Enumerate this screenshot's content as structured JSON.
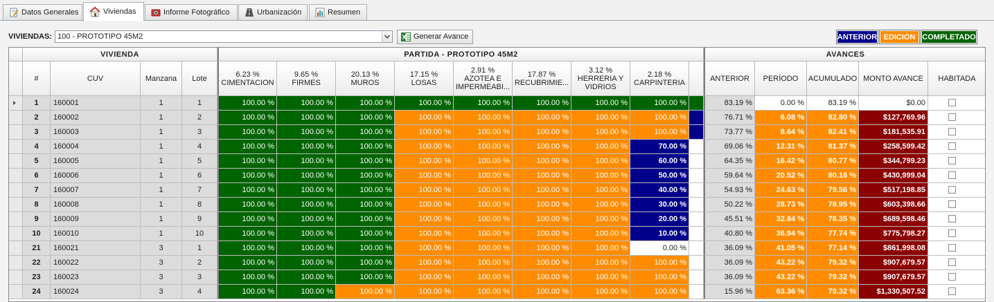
{
  "tabs": [
    {
      "label": "Datos Generales",
      "icon": "edit-document-icon"
    },
    {
      "label": "Viviendas",
      "icon": "house-icon"
    },
    {
      "label": "Informe Fotográfico",
      "icon": "camera-icon"
    },
    {
      "label": "Urbanización",
      "icon": "road-icon"
    },
    {
      "label": "Resumen",
      "icon": "bar-chart-icon"
    }
  ],
  "toolbar": {
    "viviendas_label": "VIVIENDAS:",
    "selected": "100 - PROTOTIPO 45M2",
    "generate_label": "Generar Avance"
  },
  "legend": {
    "anterior": "ANTERIOR",
    "edicion": "EDICIÓN",
    "completado": "COMPLETADO",
    "colors": {
      "anterior": "#00008b",
      "edicion": "#ff8c00",
      "completado": "#006400",
      "monto": "#8b0000"
    }
  },
  "groups": {
    "vivienda": "VIVIENDA",
    "partida": "PARTIDA - PROTOTIPO 45M2",
    "avances": "AVANCES"
  },
  "columns": {
    "num": "#",
    "cuv": "CUV",
    "manzana": "Manzana",
    "lote": "Lote",
    "partidas": [
      {
        "pct": "6.23 %",
        "name": "CIMENTACION"
      },
      {
        "pct": "9.65 %",
        "name": "FIRMES"
      },
      {
        "pct": "20.13 %",
        "name": "MUROS"
      },
      {
        "pct": "17.15 %",
        "name": "LOSAS"
      },
      {
        "pct": "2.91 %",
        "name": "AZOTEA E IMPERMEABI..."
      },
      {
        "pct": "17.87 %",
        "name": "RECUBRIMIE..."
      },
      {
        "pct": "3.12 %",
        "name": "HERRERIA Y VIDRIOS"
      },
      {
        "pct": "2.18 %",
        "name": "CARPINTERIA"
      }
    ],
    "anterior": "ANTERIOR",
    "periodo": "PERÍODO",
    "acumulado": "ACUMULADO",
    "monto": "MONTO AVANCE",
    "habitada": "HABITADA"
  },
  "rows": [
    {
      "num": "1",
      "cuv": "160001",
      "manzana": "1",
      "lote": "1",
      "p": [
        "100.00 %",
        "100.00 %",
        "100.00 %",
        "100.00 %",
        "100.00 %",
        "100.00 %",
        "100.00 %",
        "100.00 %"
      ],
      "ps": [
        "g",
        "g",
        "g",
        "g",
        "g",
        "g",
        "g",
        "g"
      ],
      "extra": "g",
      "anterior": "83.19 %",
      "periodo": "0.00 %",
      "acumulado": "83.19 %",
      "monto": "$0.00",
      "editing": false
    },
    {
      "num": "2",
      "cuv": "160002",
      "manzana": "1",
      "lote": "2",
      "p": [
        "100.00 %",
        "100.00 %",
        "100.00 %",
        "100.00 %",
        "100.00 %",
        "100.00 %",
        "100.00 %",
        "100.00 %"
      ],
      "ps": [
        "g",
        "g",
        "g",
        "o",
        "o",
        "o",
        "o",
        "o"
      ],
      "extra": "b",
      "anterior": "76.71 %",
      "periodo": "6.08 %",
      "acumulado": "82.80 %",
      "monto": "$127,769.96",
      "editing": true
    },
    {
      "num": "3",
      "cuv": "160003",
      "manzana": "1",
      "lote": "3",
      "p": [
        "100.00 %",
        "100.00 %",
        "100.00 %",
        "100.00 %",
        "100.00 %",
        "100.00 %",
        "100.00 %",
        "100.00 %"
      ],
      "ps": [
        "g",
        "g",
        "g",
        "o",
        "o",
        "o",
        "o",
        "o"
      ],
      "extra": "b",
      "anterior": "73.77 %",
      "periodo": "8.64 %",
      "acumulado": "82.41 %",
      "monto": "$181,535.91",
      "editing": true
    },
    {
      "num": "4",
      "cuv": "160004",
      "manzana": "1",
      "lote": "4",
      "p": [
        "100.00 %",
        "100.00 %",
        "100.00 %",
        "100.00 %",
        "100.00 %",
        "100.00 %",
        "100.00 %",
        "70.00 %"
      ],
      "ps": [
        "g",
        "g",
        "g",
        "o",
        "o",
        "o",
        "o",
        "b"
      ],
      "extra": "w",
      "anterior": "69.06 %",
      "periodo": "12.31 %",
      "acumulado": "81.37 %",
      "monto": "$258,599.42",
      "editing": true
    },
    {
      "num": "5",
      "cuv": "160005",
      "manzana": "1",
      "lote": "5",
      "p": [
        "100.00 %",
        "100.00 %",
        "100.00 %",
        "100.00 %",
        "100.00 %",
        "100.00 %",
        "100.00 %",
        "60.00 %"
      ],
      "ps": [
        "g",
        "g",
        "g",
        "o",
        "o",
        "o",
        "o",
        "b"
      ],
      "extra": "w",
      "anterior": "64.35 %",
      "periodo": "16.42 %",
      "acumulado": "80.77 %",
      "monto": "$344,799.23",
      "editing": true
    },
    {
      "num": "6",
      "cuv": "160006",
      "manzana": "1",
      "lote": "6",
      "p": [
        "100.00 %",
        "100.00 %",
        "100.00 %",
        "100.00 %",
        "100.00 %",
        "100.00 %",
        "100.00 %",
        "50.00 %"
      ],
      "ps": [
        "g",
        "g",
        "g",
        "o",
        "o",
        "o",
        "o",
        "b"
      ],
      "extra": "w",
      "anterior": "59.64 %",
      "periodo": "20.52 %",
      "acumulado": "80.16 %",
      "monto": "$430,999.04",
      "editing": true
    },
    {
      "num": "7",
      "cuv": "160007",
      "manzana": "1",
      "lote": "7",
      "p": [
        "100.00 %",
        "100.00 %",
        "100.00 %",
        "100.00 %",
        "100.00 %",
        "100.00 %",
        "100.00 %",
        "40.00 %"
      ],
      "ps": [
        "g",
        "g",
        "g",
        "o",
        "o",
        "o",
        "o",
        "b"
      ],
      "extra": "w",
      "anterior": "54.93 %",
      "periodo": "24.63 %",
      "acumulado": "79.56 %",
      "monto": "$517,198.85",
      "editing": true
    },
    {
      "num": "8",
      "cuv": "160008",
      "manzana": "1",
      "lote": "8",
      "p": [
        "100.00 %",
        "100.00 %",
        "100.00 %",
        "100.00 %",
        "100.00 %",
        "100.00 %",
        "100.00 %",
        "30.00 %"
      ],
      "ps": [
        "g",
        "g",
        "g",
        "o",
        "o",
        "o",
        "o",
        "b"
      ],
      "extra": "w",
      "anterior": "50.22 %",
      "periodo": "28.73 %",
      "acumulado": "78.95 %",
      "monto": "$603,398.66",
      "editing": true
    },
    {
      "num": "9",
      "cuv": "160009",
      "manzana": "1",
      "lote": "9",
      "p": [
        "100.00 %",
        "100.00 %",
        "100.00 %",
        "100.00 %",
        "100.00 %",
        "100.00 %",
        "100.00 %",
        "20.00 %"
      ],
      "ps": [
        "g",
        "g",
        "g",
        "o",
        "o",
        "o",
        "o",
        "b"
      ],
      "extra": "w",
      "anterior": "45.51 %",
      "periodo": "32.84 %",
      "acumulado": "78.35 %",
      "monto": "$689,598.46",
      "editing": true
    },
    {
      "num": "10",
      "cuv": "160010",
      "manzana": "1",
      "lote": "10",
      "p": [
        "100.00 %",
        "100.00 %",
        "100.00 %",
        "100.00 %",
        "100.00 %",
        "100.00 %",
        "100.00 %",
        "10.00 %"
      ],
      "ps": [
        "g",
        "g",
        "g",
        "o",
        "o",
        "o",
        "o",
        "b"
      ],
      "extra": "w",
      "anterior": "40.80 %",
      "periodo": "36.94 %",
      "acumulado": "77.74 %",
      "monto": "$775,798.27",
      "editing": true
    },
    {
      "num": "21",
      "cuv": "160021",
      "manzana": "3",
      "lote": "1",
      "p": [
        "100.00 %",
        "100.00 %",
        "100.00 %",
        "100.00 %",
        "100.00 %",
        "100.00 %",
        "100.00 %",
        "0.00 %"
      ],
      "ps": [
        "g",
        "g",
        "g",
        "o",
        "o",
        "o",
        "o",
        "w"
      ],
      "extra": "w",
      "anterior": "36.09 %",
      "periodo": "41.05 %",
      "acumulado": "77.14 %",
      "monto": "$861,998.08",
      "editing": true
    },
    {
      "num": "22",
      "cuv": "160022",
      "manzana": "3",
      "lote": "2",
      "p": [
        "100.00 %",
        "100.00 %",
        "100.00 %",
        "100.00 %",
        "100.00 %",
        "100.00 %",
        "100.00 %",
        "100.00 %"
      ],
      "ps": [
        "g",
        "g",
        "g",
        "o",
        "o",
        "o",
        "o",
        "o"
      ],
      "extra": "w",
      "anterior": "36.09 %",
      "periodo": "43.22 %",
      "acumulado": "79.32 %",
      "monto": "$907,679.57",
      "editing": true
    },
    {
      "num": "23",
      "cuv": "160023",
      "manzana": "3",
      "lote": "3",
      "p": [
        "100.00 %",
        "100.00 %",
        "100.00 %",
        "100.00 %",
        "100.00 %",
        "100.00 %",
        "100.00 %",
        "100.00 %"
      ],
      "ps": [
        "g",
        "g",
        "g",
        "o",
        "o",
        "o",
        "o",
        "o"
      ],
      "extra": "w",
      "anterior": "36.09 %",
      "periodo": "43.22 %",
      "acumulado": "79.32 %",
      "monto": "$907,679.57",
      "editing": true
    },
    {
      "num": "24",
      "cuv": "160024",
      "manzana": "3",
      "lote": "4",
      "p": [
        "100.00 %",
        "100.00 %",
        "100.00 %",
        "100.00 %",
        "100.00 %",
        "100.00 %",
        "100.00 %",
        "100.00 %"
      ],
      "ps": [
        "g",
        "g",
        "o",
        "o",
        "o",
        "o",
        "o",
        "o"
      ],
      "extra": "w",
      "anterior": "15.96 %",
      "periodo": "63.36 %",
      "acumulado": "79.32 %",
      "monto": "$1,330,507.52",
      "editing": true
    }
  ]
}
